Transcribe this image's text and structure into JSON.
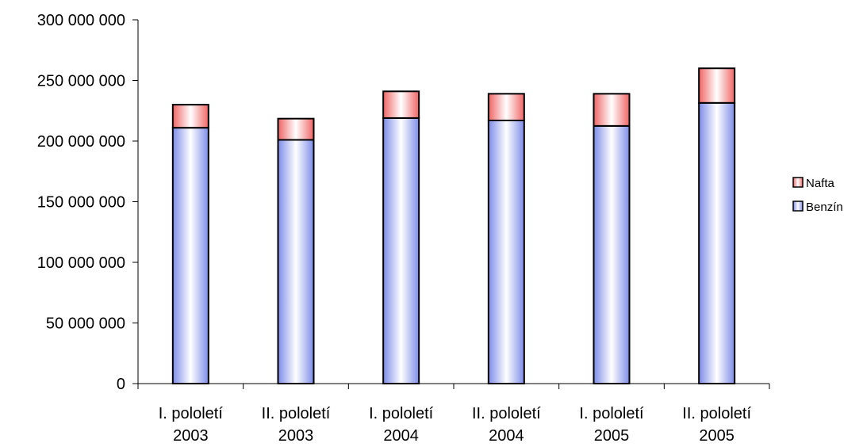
{
  "chart_data": {
    "type": "bar",
    "stacked": true,
    "categories": [
      [
        "I. pololetí",
        "2003"
      ],
      [
        "II. pololetí",
        "2003"
      ],
      [
        "I. pololetí",
        "2004"
      ],
      [
        "II. pololetí",
        "2004"
      ],
      [
        "I. pololetí",
        "2005"
      ],
      [
        "II. pololetí",
        "2005"
      ]
    ],
    "series": [
      {
        "name": "Benzín",
        "color": "#8f9cf0",
        "values": [
          211000000,
          201000000,
          219000000,
          217000000,
          212500000,
          231500000
        ]
      },
      {
        "name": "Nafta",
        "color": "#f07878",
        "values": [
          19000000,
          17500000,
          22000000,
          22000000,
          26500000,
          28500000
        ]
      }
    ],
    "ylim": [
      0,
      300000000
    ],
    "yticks": [
      0,
      50000000,
      100000000,
      150000000,
      200000000,
      250000000,
      300000000
    ],
    "ytick_labels": [
      "0",
      "50 000 000",
      "100 000 000",
      "150 000 000",
      "200 000 000",
      "250 000 000",
      "300 000 000"
    ],
    "title": "",
    "xlabel": "",
    "ylabel": "",
    "grid": false,
    "legend": {
      "position": "right",
      "entries": [
        "Nafta",
        "Benzín"
      ]
    }
  }
}
